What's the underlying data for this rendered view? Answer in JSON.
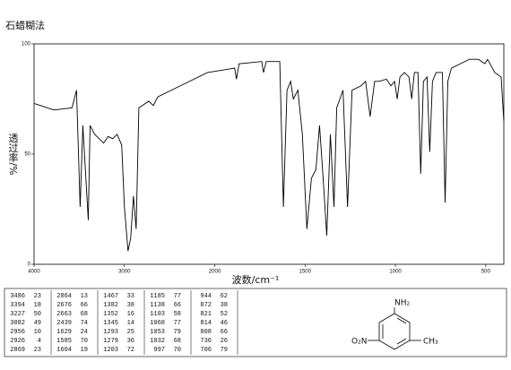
{
  "chart_data": {
    "type": "line",
    "title": "石蜡糊法",
    "xlabel": "波数/cm⁻¹",
    "ylabel": "透过率/%",
    "color": "#000000",
    "x": [
      4000,
      3780,
      3580,
      3530,
      3490,
      3460,
      3400,
      3380,
      3330,
      3230,
      3180,
      3130,
      3080,
      3030,
      3000,
      2960,
      2930,
      2900,
      2870,
      2840,
      2730,
      2680,
      2630,
      2380,
      2080,
      1890,
      1880,
      1865,
      1740,
      1730,
      1715,
      1640,
      1620,
      1600,
      1580,
      1565,
      1540,
      1515,
      1490,
      1465,
      1440,
      1420,
      1400,
      1380,
      1360,
      1340,
      1325,
      1290,
      1265,
      1240,
      1190,
      1165,
      1140,
      1115,
      1090,
      1050,
      1025,
      1005,
      990,
      975,
      950,
      925,
      910,
      895,
      875,
      860,
      845,
      825,
      810,
      795,
      775,
      740,
      725,
      710,
      690,
      640,
      590,
      540,
      505,
      490,
      450,
      415,
      400
    ],
    "values": [
      73,
      70,
      71,
      79,
      26,
      63,
      20,
      63,
      59,
      55,
      58,
      57,
      59,
      54,
      26,
      6,
      12,
      31,
      16,
      71,
      74,
      72,
      76,
      81,
      87,
      89,
      84,
      91,
      92,
      87,
      92,
      92,
      26,
      79,
      83,
      75,
      79,
      59,
      16,
      39,
      43,
      63,
      39,
      13,
      59,
      26,
      71,
      79,
      26,
      79,
      81,
      83,
      67,
      83,
      83,
      84,
      81,
      83,
      75,
      85,
      87,
      85,
      75,
      87,
      87,
      41,
      83,
      85,
      51,
      83,
      87,
      87,
      28,
      83,
      89,
      91,
      93,
      93,
      91,
      93,
      87,
      85,
      65
    ],
    "xlim": [
      4000,
      400
    ],
    "ylim": [
      0,
      100
    ],
    "xticks": [
      4000,
      3000,
      2000,
      1500,
      1000,
      500
    ],
    "yticks": [
      0,
      50,
      100
    ]
  },
  "peak_table": {
    "columns": [
      [
        [
          "3486",
          "23"
        ],
        [
          "3394",
          "18"
        ],
        [
          "3227",
          "50"
        ],
        [
          "3082",
          "49"
        ],
        [
          "2956",
          "10"
        ],
        [
          "2926",
          "4"
        ],
        [
          "2869",
          "23"
        ]
      ],
      [
        [
          "2864",
          "13"
        ],
        [
          "2676",
          "66"
        ],
        [
          "2663",
          "68"
        ],
        [
          "2439",
          "74"
        ],
        [
          "1629",
          "24"
        ],
        [
          "1585",
          "70"
        ],
        [
          "1604",
          "19"
        ]
      ],
      [
        [
          "1467",
          "33"
        ],
        [
          "1382",
          "38"
        ],
        [
          "1352",
          "16"
        ],
        [
          "1345",
          "14"
        ],
        [
          "1293",
          "25"
        ],
        [
          "1279",
          "36"
        ],
        [
          "1203",
          "72"
        ]
      ],
      [
        [
          "1185",
          "77"
        ],
        [
          "1138",
          "66"
        ],
        [
          "1103",
          "58"
        ],
        [
          "1068",
          "77"
        ],
        [
          "1053",
          "79"
        ],
        [
          "1032",
          "68"
        ],
        [
          "997",
          "70"
        ]
      ],
      [
        [
          "944",
          "62"
        ],
        [
          "872",
          "38"
        ],
        [
          "821",
          "52"
        ],
        [
          "814",
          "46"
        ],
        [
          "808",
          "66"
        ],
        [
          "736",
          "26"
        ],
        [
          "706",
          "79"
        ]
      ]
    ]
  },
  "structure": {
    "labels": [
      "NH₂",
      "O₂N",
      "CH₃"
    ]
  }
}
